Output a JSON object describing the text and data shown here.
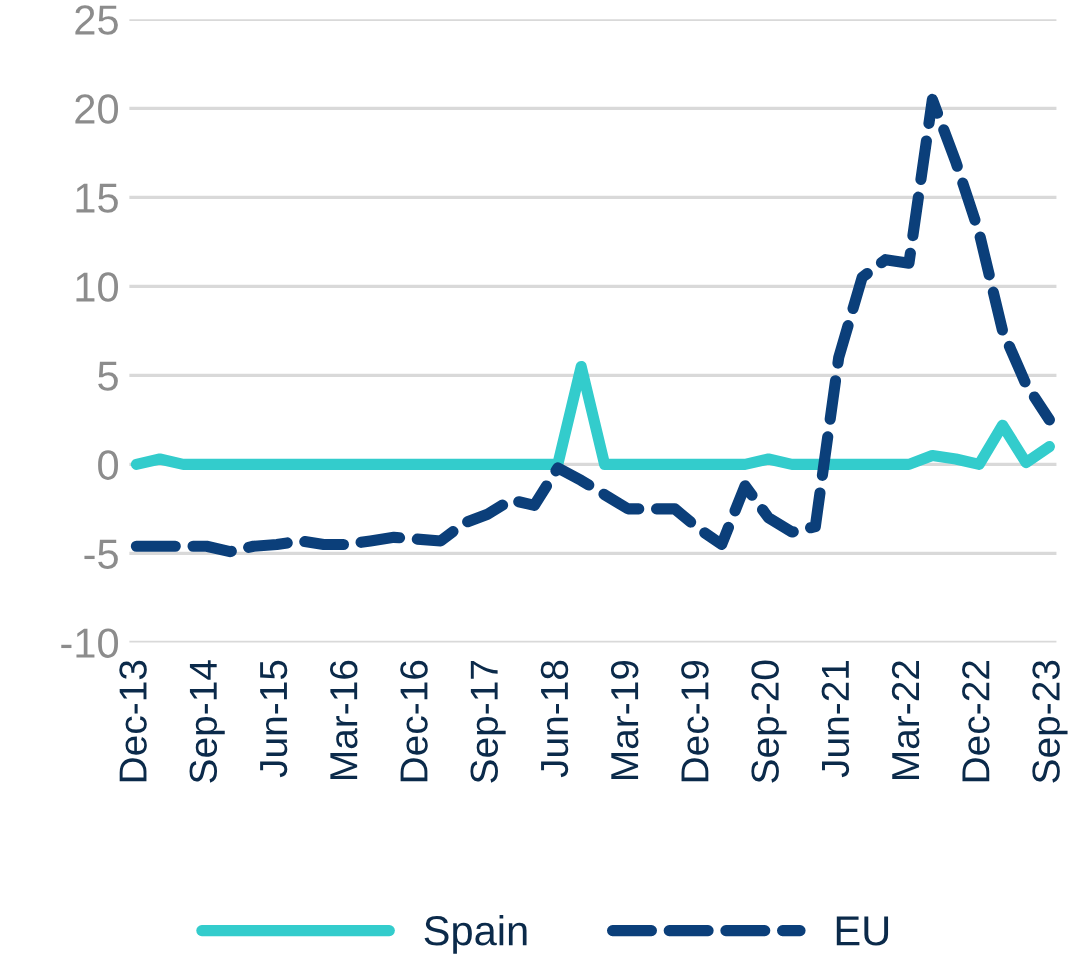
{
  "chart_data": {
    "type": "line",
    "categories": [
      "Dec-13",
      null,
      null,
      "Sep-14",
      null,
      null,
      "Jun-15",
      null,
      null,
      "Mar-16",
      null,
      null,
      "Dec-16",
      null,
      null,
      "Sep-17",
      null,
      null,
      "Jun-18",
      null,
      null,
      "Mar-19",
      null,
      null,
      "Dec-19",
      null,
      null,
      "Sep-20",
      null,
      null,
      "Jun-21",
      null,
      null,
      "Mar-22",
      null,
      null,
      "Dec-22",
      null,
      null,
      "Sep-23"
    ],
    "series": [
      {
        "name": "Spain",
        "color": "#33cccc",
        "line_style": "solid",
        "values": [
          0,
          0.3,
          0,
          0,
          0,
          0,
          0,
          0,
          0,
          0,
          0,
          0,
          0,
          0,
          0,
          0,
          0,
          0,
          0,
          5.5,
          0,
          0,
          0,
          0,
          0,
          0,
          0,
          0.3,
          0,
          0,
          0,
          0,
          0,
          0,
          0.5,
          0.3,
          0,
          2.2,
          0.1,
          1.0
        ]
      },
      {
        "name": "EU",
        "color": "#0b3f7a",
        "line_style": "dashed",
        "values": [
          -4.6,
          -4.6,
          -4.6,
          -4.6,
          -4.9,
          -4.6,
          -4.5,
          -4.3,
          -4.5,
          -4.5,
          -4.3,
          -4.1,
          -4.2,
          -4.3,
          -3.3,
          -2.8,
          -2.0,
          -2.3,
          -0.2,
          -0.9,
          -1.7,
          -2.5,
          -2.5,
          -2.5,
          -3.6,
          -4.5,
          -1.2,
          -3.0,
          -3.8,
          -3.5,
          6,
          10.5,
          11.5,
          11.3,
          20.5,
          17,
          13,
          7.5,
          4.5,
          2.5
        ]
      }
    ],
    "ylim": [
      -10,
      25
    ],
    "yticks": [
      -10,
      -5,
      0,
      5,
      10,
      15,
      20,
      25
    ],
    "grid": "y",
    "legend": "bottom",
    "marker": "none"
  }
}
